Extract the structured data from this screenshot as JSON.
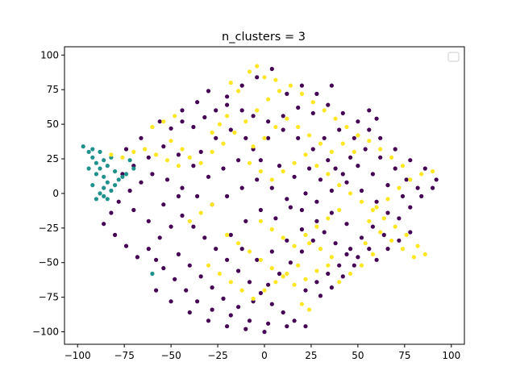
{
  "chart_data": {
    "type": "scatter",
    "title": "n_clusters = 3",
    "xlabel": "",
    "ylabel": "",
    "xlim": [
      -107,
      107
    ],
    "ylim": [
      -109,
      106
    ],
    "x_ticks": [
      -100,
      -75,
      -50,
      -25,
      0,
      25,
      50,
      75,
      100
    ],
    "y_ticks": [
      -100,
      -75,
      -50,
      -25,
      0,
      25,
      50,
      75,
      100
    ],
    "grid": false,
    "legend": {
      "placement": "top-right",
      "entries": []
    },
    "series": [
      {
        "cluster": 0,
        "color": "#440154",
        "points": [
          [
            -56,
            52
          ],
          [
            -50,
            47
          ],
          [
            -44,
            52
          ],
          [
            -38,
            48
          ],
          [
            -32,
            55
          ],
          [
            -26,
            60
          ],
          [
            -20,
            64
          ],
          [
            -12,
            60
          ],
          [
            -6,
            56
          ],
          [
            2,
            52
          ],
          [
            10,
            56
          ],
          [
            18,
            62
          ],
          [
            26,
            58
          ],
          [
            34,
            64
          ],
          [
            42,
            58
          ],
          [
            50,
            52
          ],
          [
            56,
            46
          ],
          [
            62,
            40
          ],
          [
            70,
            32
          ],
          [
            78,
            24
          ],
          [
            86,
            18
          ],
          [
            92,
            10
          ],
          [
            90,
            4
          ],
          [
            84,
            -2
          ],
          [
            78,
            -10
          ],
          [
            72,
            -18
          ],
          [
            66,
            -14
          ],
          [
            60,
            -6
          ],
          [
            52,
            2
          ],
          [
            44,
            8
          ],
          [
            36,
            2
          ],
          [
            28,
            -6
          ],
          [
            20,
            -12
          ],
          [
            12,
            -4
          ],
          [
            4,
            4
          ],
          [
            -4,
            10
          ],
          [
            -12,
            4
          ],
          [
            -20,
            -2
          ],
          [
            -28,
            -8
          ],
          [
            -36,
            -2
          ],
          [
            -44,
            4
          ],
          [
            -52,
            10
          ],
          [
            -60,
            14
          ],
          [
            -66,
            8
          ],
          [
            -72,
            2
          ],
          [
            -78,
            -6
          ],
          [
            -82,
            -14
          ],
          [
            -86,
            -22
          ],
          [
            -80,
            -30
          ],
          [
            -74,
            -38
          ],
          [
            -68,
            -46
          ],
          [
            -62,
            -40
          ],
          [
            -56,
            -32
          ],
          [
            -50,
            -24
          ],
          [
            -44,
            -16
          ],
          [
            -38,
            -24
          ],
          [
            -32,
            -32
          ],
          [
            -26,
            -40
          ],
          [
            -20,
            -48
          ],
          [
            -14,
            -56
          ],
          [
            -8,
            -64
          ],
          [
            -2,
            -72
          ],
          [
            4,
            -80
          ],
          [
            10,
            -86
          ],
          [
            16,
            -92
          ],
          [
            22,
            -96
          ],
          [
            12,
            -96
          ],
          [
            2,
            -94
          ],
          [
            -8,
            -92
          ],
          [
            -18,
            -88
          ],
          [
            -28,
            -84
          ],
          [
            -36,
            -78
          ],
          [
            -42,
            -70
          ],
          [
            -48,
            -62
          ],
          [
            -54,
            -54
          ],
          [
            -58,
            -48
          ],
          [
            -46,
            -44
          ],
          [
            -40,
            -52
          ],
          [
            -34,
            -60
          ],
          [
            -28,
            -68
          ],
          [
            -22,
            -76
          ],
          [
            -14,
            -82
          ],
          [
            -6,
            -78
          ],
          [
            2,
            -66
          ],
          [
            8,
            -58
          ],
          [
            14,
            -50
          ],
          [
            20,
            -42
          ],
          [
            26,
            -34
          ],
          [
            32,
            -28
          ],
          [
            38,
            -36
          ],
          [
            44,
            -44
          ],
          [
            40,
            -52
          ],
          [
            34,
            -58
          ],
          [
            28,
            -64
          ],
          [
            22,
            -70
          ],
          [
            30,
            -74
          ],
          [
            36,
            -68
          ],
          [
            42,
            -60
          ],
          [
            48,
            -52
          ],
          [
            46,
            -40
          ],
          [
            52,
            -32
          ],
          [
            58,
            -24
          ],
          [
            64,
            -30
          ],
          [
            56,
            -40
          ],
          [
            50,
            -46
          ],
          [
            44,
            -22
          ],
          [
            36,
            -14
          ],
          [
            28,
            -20
          ],
          [
            20,
            -26
          ],
          [
            12,
            -34
          ],
          [
            4,
            -42
          ],
          [
            -4,
            -48
          ],
          [
            -12,
            -40
          ],
          [
            -18,
            -30
          ],
          [
            -10,
            -20
          ],
          [
            -2,
            -12
          ],
          [
            6,
            -18
          ],
          [
            14,
            -10
          ],
          [
            22,
            0
          ],
          [
            30,
            10
          ],
          [
            38,
            18
          ],
          [
            46,
            26
          ],
          [
            54,
            32
          ],
          [
            62,
            26
          ],
          [
            70,
            18
          ],
          [
            76,
            10
          ],
          [
            82,
            4
          ],
          [
            74,
            -2
          ],
          [
            66,
            6
          ],
          [
            58,
            14
          ],
          [
            50,
            20
          ],
          [
            42,
            14
          ],
          [
            34,
            24
          ],
          [
            26,
            32
          ],
          [
            18,
            40
          ],
          [
            10,
            46
          ],
          [
            2,
            40
          ],
          [
            -6,
            32
          ],
          [
            -14,
            24
          ],
          [
            -22,
            18
          ],
          [
            -30,
            12
          ],
          [
            -38,
            20
          ],
          [
            -46,
            28
          ],
          [
            -54,
            34
          ],
          [
            -62,
            26
          ],
          [
            -70,
            20
          ],
          [
            -76,
            14
          ],
          [
            -70,
            -12
          ],
          [
            -62,
            -20
          ],
          [
            -54,
            -8
          ],
          [
            -46,
            -2
          ],
          [
            -34,
            30
          ],
          [
            -26,
            40
          ],
          [
            -18,
            46
          ],
          [
            -10,
            40
          ],
          [
            -2,
            24
          ],
          [
            8,
            20
          ],
          [
            16,
            12
          ],
          [
            24,
            18
          ],
          [
            32,
            40
          ],
          [
            40,
            46
          ],
          [
            48,
            40
          ],
          [
            56,
            60
          ],
          [
            60,
            54
          ],
          [
            -4,
            84
          ],
          [
            4,
            90
          ],
          [
            -12,
            78
          ],
          [
            20,
            78
          ],
          [
            28,
            72
          ],
          [
            36,
            78
          ],
          [
            12,
            72
          ],
          [
            -20,
            70
          ],
          [
            -30,
            74
          ],
          [
            -36,
            66
          ],
          [
            -44,
            60
          ],
          [
            -66,
            40
          ],
          [
            -74,
            32
          ],
          [
            -58,
            -70
          ],
          [
            -50,
            -78
          ],
          [
            -40,
            -86
          ],
          [
            -30,
            -92
          ],
          [
            -20,
            -96
          ],
          [
            -10,
            -98
          ],
          [
            0,
            -100
          ],
          [
            60,
            -48
          ],
          [
            66,
            -40
          ],
          [
            72,
            -34
          ],
          [
            78,
            -28
          ]
        ]
      },
      {
        "cluster": 1,
        "color": "#21918c",
        "points": [
          [
            -97,
            34
          ],
          [
            -94,
            30
          ],
          [
            -92,
            26
          ],
          [
            -90,
            22
          ],
          [
            -88,
            18
          ],
          [
            -90,
            14
          ],
          [
            -86,
            12
          ],
          [
            -84,
            8
          ],
          [
            -86,
            4
          ],
          [
            -88,
            0
          ],
          [
            -90,
            -4
          ],
          [
            -86,
            -2
          ],
          [
            -82,
            2
          ],
          [
            -80,
            6
          ],
          [
            -78,
            10
          ],
          [
            -76,
            12
          ],
          [
            -80,
            16
          ],
          [
            -84,
            20
          ],
          [
            -86,
            24
          ],
          [
            -82,
            26
          ],
          [
            -88,
            30
          ],
          [
            -92,
            32
          ],
          [
            -94,
            18
          ],
          [
            -92,
            6
          ],
          [
            -84,
            -4
          ],
          [
            -74,
            14
          ],
          [
            -70,
            18
          ],
          [
            -72,
            24
          ],
          [
            -60,
            -58
          ]
        ]
      },
      {
        "cluster": 2,
        "color": "#fde725",
        "points": [
          [
            -82,
            28
          ],
          [
            -76,
            26
          ],
          [
            -70,
            30
          ],
          [
            -64,
            32
          ],
          [
            -58,
            28
          ],
          [
            -52,
            24
          ],
          [
            -46,
            20
          ],
          [
            -40,
            26
          ],
          [
            -34,
            22
          ],
          [
            -28,
            30
          ],
          [
            -22,
            36
          ],
          [
            -16,
            44
          ],
          [
            -10,
            52
          ],
          [
            -4,
            60
          ],
          [
            2,
            68
          ],
          [
            8,
            74
          ],
          [
            14,
            78
          ],
          [
            20,
            72
          ],
          [
            26,
            66
          ],
          [
            32,
            60
          ],
          [
            38,
            54
          ],
          [
            44,
            48
          ],
          [
            50,
            42
          ],
          [
            -8,
            88
          ],
          [
            -4,
            92
          ],
          [
            0,
            84
          ],
          [
            6,
            82
          ],
          [
            -14,
            74
          ],
          [
            -18,
            80
          ],
          [
            -60,
            48
          ],
          [
            -54,
            52
          ],
          [
            -48,
            56
          ],
          [
            -20,
            56
          ],
          [
            -24,
            50
          ],
          [
            -28,
            44
          ],
          [
            -8,
            22
          ],
          [
            -2,
            16
          ],
          [
            4,
            10
          ],
          [
            10,
            16
          ],
          [
            16,
            22
          ],
          [
            22,
            28
          ],
          [
            28,
            20
          ],
          [
            34,
            14
          ],
          [
            40,
            6
          ],
          [
            46,
            0
          ],
          [
            52,
            -6
          ],
          [
            58,
            -12
          ],
          [
            64,
            -18
          ],
          [
            70,
            -24
          ],
          [
            76,
            -30
          ],
          [
            82,
            -38
          ],
          [
            86,
            -44
          ],
          [
            80,
            -46
          ],
          [
            74,
            -40
          ],
          [
            68,
            -34
          ],
          [
            62,
            -28
          ],
          [
            56,
            -20
          ],
          [
            60,
            -10
          ],
          [
            66,
            -4
          ],
          [
            72,
            4
          ],
          [
            78,
            10
          ],
          [
            84,
            14
          ],
          [
            90,
            16
          ],
          [
            74,
            20
          ],
          [
            68,
            26
          ],
          [
            62,
            32
          ],
          [
            56,
            38
          ],
          [
            48,
            30
          ],
          [
            42,
            36
          ],
          [
            36,
            30
          ],
          [
            30,
            36
          ],
          [
            24,
            42
          ],
          [
            18,
            48
          ],
          [
            12,
            54
          ],
          [
            6,
            48
          ],
          [
            0,
            40
          ],
          [
            -6,
            34
          ],
          [
            -2,
            -20
          ],
          [
            4,
            -26
          ],
          [
            10,
            -32
          ],
          [
            16,
            -38
          ],
          [
            22,
            -30
          ],
          [
            28,
            -24
          ],
          [
            34,
            -18
          ],
          [
            40,
            -12
          ],
          [
            -20,
            -30
          ],
          [
            -14,
            -36
          ],
          [
            -8,
            -42
          ],
          [
            -2,
            -48
          ],
          [
            4,
            -54
          ],
          [
            10,
            -60
          ],
          [
            16,
            -66
          ],
          [
            22,
            -62
          ],
          [
            28,
            -56
          ],
          [
            34,
            -52
          ],
          [
            -30,
            -52
          ],
          [
            -24,
            -58
          ],
          [
            -18,
            -64
          ],
          [
            -12,
            -70
          ],
          [
            -6,
            -76
          ],
          [
            0,
            -70
          ],
          [
            6,
            -64
          ],
          [
            12,
            -58
          ],
          [
            18,
            -52
          ],
          [
            20,
            -80
          ],
          [
            24,
            -84
          ],
          [
            40,
            -64
          ],
          [
            46,
            -58
          ],
          [
            52,
            -52
          ],
          [
            -40,
            -20
          ],
          [
            -34,
            -14
          ],
          [
            -28,
            -8
          ],
          [
            -44,
            32
          ],
          [
            -50,
            38
          ],
          [
            30,
            -40
          ],
          [
            36,
            -46
          ],
          [
            24,
            -36
          ],
          [
            58,
            -44
          ],
          [
            54,
            -36
          ]
        ]
      }
    ]
  }
}
